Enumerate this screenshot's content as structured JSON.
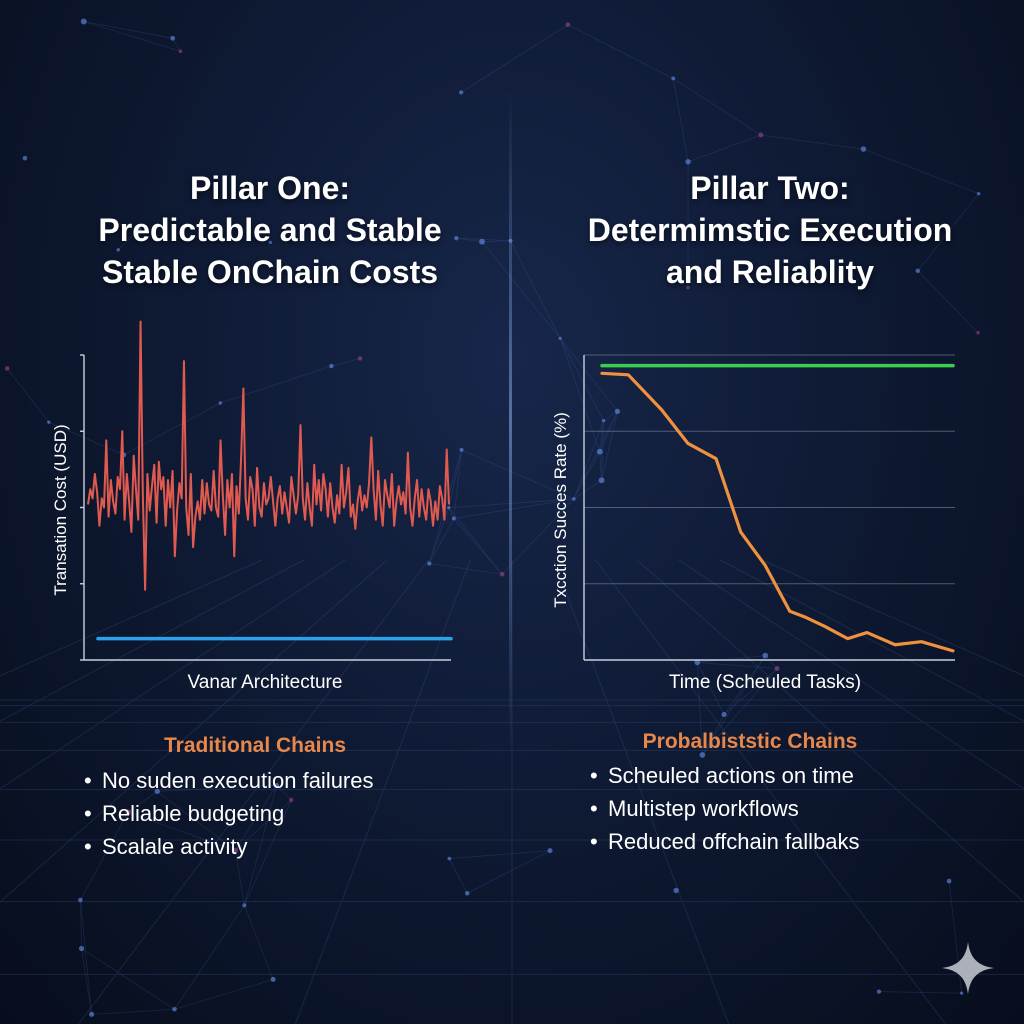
{
  "left": {
    "title_lines": [
      "Pillar One:",
      "Predictable and Stable",
      "Stable OnChain Costs"
    ],
    "legend_title": "Traditional Chains",
    "bullets": [
      "No suden execution failures",
      "Reliable budgeting",
      "Scalale activity"
    ]
  },
  "right": {
    "title_lines": [
      "Pillar Two:",
      "Determimstic Execution",
      "and Reliablity"
    ],
    "legend_title": "Probalbiststic Chains",
    "bullets": [
      "Scheuled actions on time",
      "Multistep workflows",
      "Reduced offchain fallbaks"
    ]
  },
  "colors": {
    "background": "#0d1830",
    "volatile_line": "#e05a4f",
    "stable_line": "#2aa3ec",
    "success_line": "#3ccf4e",
    "decline_line": "#f0913f",
    "legend_title": "#e8874a",
    "text": "#ffffff"
  },
  "icons": {
    "corner_mark": "sparkle-icon"
  },
  "chart_data": [
    {
      "type": "line",
      "xlabel": "Vanar Architecture",
      "ylabel": "Transation Cost (USD)",
      "ylim": [
        0,
        10
      ],
      "grid": false,
      "series": [
        {
          "color": "#e05a4f",
          "values": [
            5.1,
            5.6,
            5.3,
            6.1,
            5.5,
            4.4,
            5.3,
            5.0,
            7.2,
            4.7,
            5.9,
            5.2,
            4.8,
            6.0,
            5.6,
            7.5,
            4.6,
            6.1,
            5.2,
            4.2,
            6.7,
            5.6,
            4.6,
            11.1,
            5.4,
            2.3,
            6.1,
            4.9,
            5.7,
            6.4,
            4.5,
            6.5,
            5.6,
            6.0,
            4.4,
            5.9,
            5.0,
            6.2,
            3.4,
            4.9,
            5.8,
            5.3,
            9.8,
            5.0,
            4.1,
            6.1,
            3.7,
            4.7,
            5.2,
            4.6,
            5.9,
            4.8,
            5.8,
            5.1,
            4.9,
            6.2,
            5.0,
            4.7,
            7.2,
            5.4,
            4.1,
            5.9,
            5.0,
            6.1,
            3.4,
            5.7,
            4.8,
            6.6,
            8.9,
            5.3,
            4.6,
            6.0,
            5.6,
            4.4,
            6.3,
            5.0,
            4.7,
            5.8,
            5.1,
            5.3,
            6.0,
            5.2,
            4.4,
            5.3,
            5.7,
            4.8,
            5.5,
            5.0,
            4.5,
            6.0,
            5.4,
            4.8,
            5.4,
            7.7,
            5.3,
            4.6,
            5.8,
            5.0,
            4.4,
            6.4,
            5.1,
            5.9,
            4.9,
            6.1,
            5.6,
            4.7,
            5.8,
            5.0,
            4.5,
            5.4,
            4.8,
            6.4,
            5.0,
            5.5,
            6.3,
            4.7,
            5.1,
            4.3,
            5.2,
            5.7,
            4.9,
            5.4,
            5.0,
            5.8,
            7.3,
            5.6,
            4.6,
            6.2,
            5.1,
            4.4,
            5.9,
            5.4,
            5.0,
            6.1,
            4.4,
            5.2,
            5.7,
            5.1,
            5.5,
            4.8,
            6.8,
            5.0,
            4.4,
            5.3,
            5.9,
            4.7,
            5.6,
            5.0,
            4.6,
            5.6,
            5.2,
            4.4,
            5.2,
            4.6,
            5.7,
            5.3,
            4.6,
            6.9,
            5.1
          ]
        },
        {
          "color": "#2aa3ec",
          "values": [
            0.7,
            0.7
          ]
        }
      ]
    },
    {
      "type": "line",
      "xlabel": "Time (Scheuled Tasks)",
      "ylabel": "Txcction Succes Rate (%)",
      "ylim": [
        0,
        100
      ],
      "grid": true,
      "series": [
        {
          "color": "#3ccf4e",
          "x": [
            0,
            100
          ],
          "values": [
            96.5,
            96.5
          ]
        },
        {
          "color": "#f0913f",
          "x": [
            0,
            7.5,
            17,
            24.5,
            32.5,
            39.5,
            46.5,
            53.5,
            58,
            63.5,
            70,
            75.5,
            83.5,
            91,
            100
          ],
          "values": [
            94,
            93.5,
            82,
            71,
            66,
            42,
            31,
            16,
            14,
            11,
            7,
            9,
            5,
            6,
            3
          ]
        }
      ]
    }
  ]
}
